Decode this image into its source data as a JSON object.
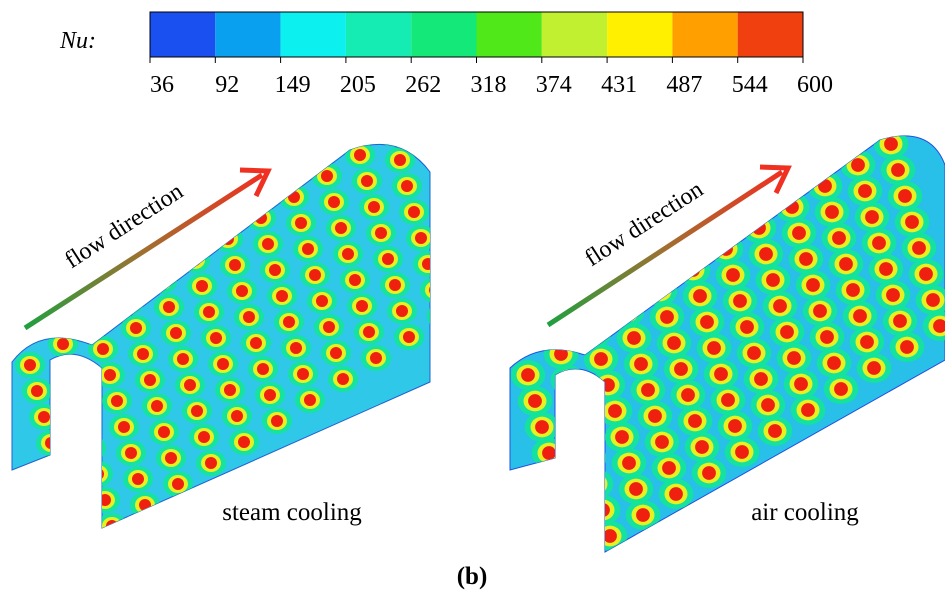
{
  "legend": {
    "label": "Nu:",
    "colors": [
      "#1a4ff0",
      "#0aa0f0",
      "#0df0f0",
      "#14ecb4",
      "#14e878",
      "#50e818",
      "#c0f030",
      "#fff000",
      "#ffa000",
      "#f04010"
    ],
    "ticks": [
      36,
      92,
      149,
      205,
      262,
      318,
      374,
      431,
      487,
      544,
      600
    ]
  },
  "panels": [
    {
      "arrow_label": "flow direction",
      "label": "steam cooling"
    },
    {
      "arrow_label": "flow direction",
      "label": "air cooling"
    }
  ],
  "caption": "(b)"
}
